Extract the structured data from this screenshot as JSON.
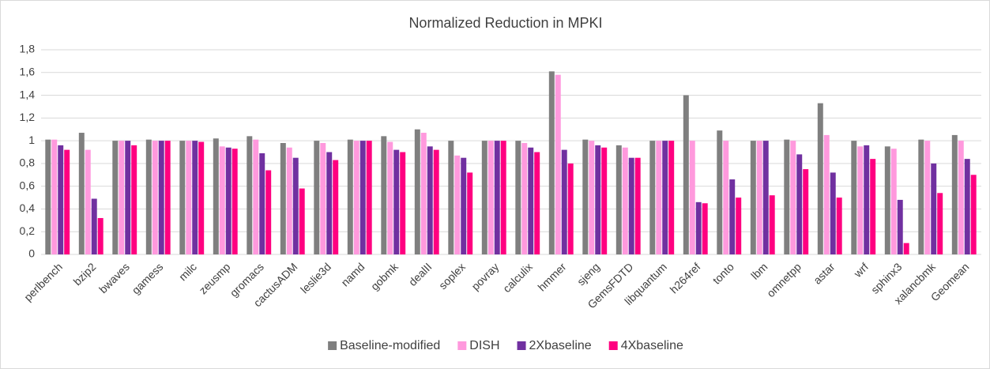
{
  "chart_data": {
    "type": "bar",
    "title": "Normalized Reduction in MPKI",
    "categories": [
      "perlbench",
      "bzip2",
      "bwaves",
      "gamess",
      "milc",
      "zeusmp",
      "gromacs",
      "cactusADM",
      "leslie3d",
      "namd",
      "gobmk",
      "dealII",
      "soplex",
      "povray",
      "calculix",
      "hmmer",
      "sjeng",
      "GemsFDTD",
      "libquantum",
      "h264ref",
      "tonto",
      "lbm",
      "omnetpp",
      "astar",
      "wrf",
      "sphinx3",
      "xalancbmk",
      "Geomean"
    ],
    "series": [
      {
        "name": "Baseline-modified",
        "color": "#7f7f7f",
        "values": [
          1.01,
          1.07,
          1.0,
          1.01,
          1.0,
          1.02,
          1.04,
          0.98,
          1.0,
          1.01,
          1.04,
          1.1,
          1.0,
          1.0,
          1.0,
          1.61,
          1.01,
          0.96,
          1.0,
          1.4,
          1.09,
          1.0,
          1.01,
          1.33,
          1.0,
          0.95,
          1.01,
          1.05
        ]
      },
      {
        "name": "DISH",
        "color": "#ff99dd",
        "values": [
          1.01,
          0.92,
          1.0,
          1.0,
          1.0,
          0.95,
          1.01,
          0.94,
          0.98,
          1.0,
          0.99,
          1.07,
          0.87,
          1.0,
          0.98,
          1.58,
          1.0,
          0.94,
          1.0,
          1.0,
          1.0,
          1.0,
          1.0,
          1.05,
          0.95,
          0.93,
          1.0,
          1.0
        ]
      },
      {
        "name": "2Xbaseline",
        "color": "#7030a0",
        "values": [
          0.96,
          0.49,
          1.0,
          1.0,
          1.0,
          0.94,
          0.89,
          0.85,
          0.9,
          1.0,
          0.92,
          0.95,
          0.85,
          1.0,
          0.94,
          0.92,
          0.96,
          0.85,
          1.0,
          0.46,
          0.66,
          1.0,
          0.88,
          0.72,
          0.96,
          0.48,
          0.8,
          0.84
        ]
      },
      {
        "name": "4Xbaseline",
        "color": "#ff0080",
        "values": [
          0.92,
          0.32,
          0.96,
          1.0,
          0.99,
          0.93,
          0.74,
          0.58,
          0.83,
          1.0,
          0.9,
          0.92,
          0.72,
          1.0,
          0.9,
          0.8,
          0.94,
          0.85,
          1.0,
          0.45,
          0.5,
          0.52,
          0.75,
          0.5,
          0.84,
          0.1,
          0.54,
          0.7
        ]
      }
    ],
    "ylim": [
      0,
      1.8
    ],
    "yticks": [
      0,
      {
        "value": 0.2,
        "label": "0,2"
      },
      {
        "value": 0.4,
        "label": "0,4"
      },
      {
        "value": 0.6,
        "label": "0,6"
      },
      {
        "value": 0.8,
        "label": "0,8"
      },
      1,
      {
        "value": 1.2,
        "label": "1,2"
      },
      {
        "value": 1.4,
        "label": "1,4"
      },
      {
        "value": 1.6,
        "label": "1,6"
      },
      {
        "value": 1.8,
        "label": "1,8"
      }
    ],
    "grid": true,
    "legend": "bottom"
  }
}
